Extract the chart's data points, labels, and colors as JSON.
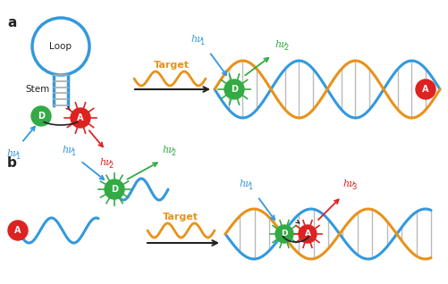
{
  "bg_color": "#ffffff",
  "blue_color": "#3399DD",
  "orange_color": "#E8921A",
  "green_color": "#33AA44",
  "red_color": "#DD2222",
  "dark_color": "#222222",
  "stem_color": "#aaaaaa",
  "label_a": "a",
  "label_b": "b",
  "loop_text": "Loop",
  "stem_text": "Stem",
  "target_text": "Target"
}
